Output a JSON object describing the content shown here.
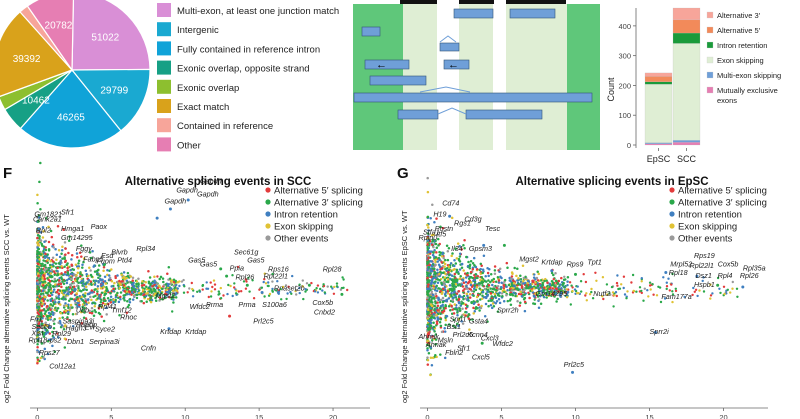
{
  "colors": {
    "multi_exon": "#d98fd6",
    "intergenic": "#1aa9d1",
    "contained_intron": "#10a3d8",
    "exonic_opposite": "#16a085",
    "exonic_overlap": "#8dbf2f",
    "exact_match": "#d9a21b",
    "contained_ref": "#f7a59a",
    "other": "#e67eb3",
    "alt5": "#e23b3b",
    "alt3": "#2aa84a",
    "intron_ret": "#3f7fc0",
    "exon_skip": "#e0c234",
    "other_events": "#9a9a9a",
    "track_dark": "#5fc77a",
    "track_light": "#dfeed4",
    "box_blue": "#6f9fd8"
  },
  "pie": {
    "chart_data": {
      "type": "pie",
      "slices": [
        {
          "label": "Multi-exon, at least one junction match",
          "value": 51022,
          "value_label": "51022",
          "color": "#d98fd6"
        },
        {
          "label": "Intergenic",
          "value": 29799,
          "value_label": "29799",
          "color": "#1aa9d1"
        },
        {
          "label": "Fully contained in reference intron",
          "value": 46265,
          "value_label": "46265",
          "color": "#10a3d8"
        },
        {
          "label": "Exonic overlap, opposite strand",
          "value": 10462,
          "value_label": "10462",
          "color": "#16a085"
        },
        {
          "label": "Exonic overlap",
          "value": 6000,
          "value_label": "",
          "color": "#8dbf2f"
        },
        {
          "label": "Exact match",
          "value": 39392,
          "value_label": "39392",
          "color": "#d9a21b"
        },
        {
          "label": "Contained in reference",
          "value": 4000,
          "value_label": "",
          "color": "#f7a59a"
        },
        {
          "label": "Other",
          "value": 20782,
          "value_label": "20782",
          "color": "#e67eb3"
        }
      ]
    },
    "legend": [
      {
        "label": "Multi-exon, at least one junction match",
        "color": "#d98fd6"
      },
      {
        "label": "Intergenic",
        "color": "#1aa9d1"
      },
      {
        "label": "Fully contained in reference intron",
        "color": "#10a3d8"
      },
      {
        "label": "Exonic overlap, opposite strand",
        "color": "#16a085"
      },
      {
        "label": "Exonic overlap",
        "color": "#8dbf2f"
      },
      {
        "label": "Exact match",
        "color": "#d9a21b"
      },
      {
        "label": "Contained in reference",
        "color": "#f7a59a"
      },
      {
        "label": "Other",
        "color": "#e67eb3"
      }
    ]
  },
  "stacked": {
    "chart_data": {
      "type": "bar",
      "stacked": true,
      "categories": [
        "EpSC",
        "SCC"
      ],
      "ylabel": "Count",
      "yticks": [
        0,
        100,
        200,
        300,
        400
      ],
      "ylim": [
        0,
        460
      ],
      "series": [
        {
          "name": "Mutually exclusive exons",
          "values": [
            4,
            9
          ],
          "color": "#e67eb3"
        },
        {
          "name": "Multi-exon skipping",
          "values": [
            4,
            7
          ],
          "color": "#6f9fd8"
        },
        {
          "name": "Exon skipping",
          "values": [
            196,
            325
          ],
          "color": "#dfeed4"
        },
        {
          "name": "Intron retention",
          "values": [
            8,
            35
          ],
          "color": "#1a9a3a"
        },
        {
          "name": "Alternative 5'",
          "values": [
            18,
            44
          ],
          "color": "#f28a5a"
        },
        {
          "name": "Alternative 3'",
          "values": [
            12,
            40
          ],
          "color": "#f7a59a"
        }
      ]
    },
    "legend": [
      {
        "label": "Alternative 3′",
        "color": "#f7a59a"
      },
      {
        "label": "Alternative 5′",
        "color": "#f28a5a"
      },
      {
        "label": "Intron retention",
        "color": "#1a9a3a"
      },
      {
        "label": "Exon skipping",
        "color": "#dfeed4"
      },
      {
        "label": "Multi-exon skipping",
        "color": "#6f9fd8"
      },
      {
        "label": "Mutually exclusive",
        "color": "#e67eb3"
      },
      {
        "label": "exons",
        "color": ""
      }
    ]
  },
  "panelF": {
    "letter": "F",
    "chart_data": {
      "type": "scatter",
      "title": "Alternative splicing events in SCC",
      "ylabel": "og2 Fold Change alternative splicing events SCC vs. WT",
      "xticks": [
        0,
        5,
        10,
        15,
        20
      ],
      "xlim": [
        -0.5,
        22.5
      ],
      "ylim": [
        -3.2,
        3.0
      ],
      "seed": 7,
      "legend": [
        {
          "label": "Alternative 5′ splicing",
          "color": "#e23b3b"
        },
        {
          "label": "Alternative 3′ splicing",
          "color": "#2aa84a"
        },
        {
          "label": "Intron retention",
          "color": "#3f7fc0"
        },
        {
          "label": "Exon skipping",
          "color": "#e0c234"
        },
        {
          "label": "Other events",
          "color": "#9a9a9a"
        }
      ],
      "highlight_points": [
        {
          "x": 10.2,
          "y": 2.45,
          "color": "#3f7fc0"
        },
        {
          "x": 9.0,
          "y": 2.2,
          "color": "#3f7fc0"
        },
        {
          "x": 8.1,
          "y": 1.95,
          "color": "#3f7fc0"
        },
        {
          "x": 12.4,
          "y": 0.55,
          "color": "#2aa84a"
        },
        {
          "x": 12.8,
          "y": 0.35,
          "color": "#2aa84a"
        },
        {
          "x": 14.2,
          "y": 0.1,
          "color": "#2aa84a"
        },
        {
          "x": 15.2,
          "y": -0.1,
          "color": "#3f7fc0"
        },
        {
          "x": 16.3,
          "y": -0.1,
          "color": "#3f7fc0"
        },
        {
          "x": 18.4,
          "y": 0.1,
          "color": "#2aa84a"
        },
        {
          "x": 20.6,
          "y": -0.15,
          "color": "#2aa84a"
        },
        {
          "x": 13.0,
          "y": -0.75,
          "color": "#e23b3b"
        },
        {
          "x": 8.9,
          "y": -1.1,
          "color": "#3f7fc0"
        }
      ],
      "genes": [
        {
          "label": "Gapdh",
          "x": 9.4,
          "y": 2.65
        },
        {
          "label": "Gapdh",
          "x": 10.8,
          "y": 2.55
        },
        {
          "label": "Gapdh",
          "x": 11.0,
          "y": 2.9
        },
        {
          "label": "Gapdh",
          "x": 8.6,
          "y": 2.35
        },
        {
          "label": "Sfr1",
          "x": 1.6,
          "y": 2.05
        },
        {
          "label": "Gm1821",
          "x": -0.2,
          "y": 2.0
        },
        {
          "label": "Cank2a1",
          "x": -0.3,
          "y": 1.85
        },
        {
          "label": "Hmga1",
          "x": 1.6,
          "y": 1.6
        },
        {
          "label": "Paox",
          "x": 3.6,
          "y": 1.65
        },
        {
          "label": "Rpl2",
          "x": -0.1,
          "y": 1.55
        },
        {
          "label": "Gm14295",
          "x": 1.6,
          "y": 1.35
        },
        {
          "label": "Rpl34",
          "x": 6.7,
          "y": 1.05
        },
        {
          "label": "Fggy",
          "x": 2.6,
          "y": 1.05
        },
        {
          "label": "Esd",
          "x": 4.3,
          "y": 0.85
        },
        {
          "label": "Blvrb",
          "x": 5.0,
          "y": 0.95
        },
        {
          "label": "Fabp5",
          "x": 3.1,
          "y": 0.75
        },
        {
          "label": "Fuom",
          "x": 4.0,
          "y": 0.7
        },
        {
          "label": "Ptd4",
          "x": 5.4,
          "y": 0.72
        },
        {
          "label": "Sec61g",
          "x": 13.3,
          "y": 0.95
        },
        {
          "label": "Gas5",
          "x": 10.2,
          "y": 0.72
        },
        {
          "label": "Gas5",
          "x": 11.0,
          "y": 0.62
        },
        {
          "label": "Gas5",
          "x": 14.2,
          "y": 0.72
        },
        {
          "label": "Ppia",
          "x": 13.0,
          "y": 0.5
        },
        {
          "label": "Rps16",
          "x": 15.6,
          "y": 0.48
        },
        {
          "label": "Rpl28",
          "x": 19.3,
          "y": 0.48
        },
        {
          "label": "Rpl26",
          "x": 13.4,
          "y": 0.26
        },
        {
          "label": "Rpl22l1",
          "x": 15.3,
          "y": 0.28
        },
        {
          "label": "Mgst2",
          "x": 8.0,
          "y": -0.25
        },
        {
          "label": "Wfdc2",
          "x": 10.3,
          "y": -0.55
        },
        {
          "label": "Rnaset2b",
          "x": 16.0,
          "y": -0.05
        },
        {
          "label": "Cox5b",
          "x": 18.6,
          "y": -0.45
        },
        {
          "label": "S100a6",
          "x": 15.2,
          "y": -0.5
        },
        {
          "label": "Cnbd2",
          "x": 18.7,
          "y": -0.7
        },
        {
          "label": "Prma",
          "x": 11.4,
          "y": -0.5
        },
        {
          "label": "Prma",
          "x": 13.6,
          "y": -0.5
        },
        {
          "label": "Prl2c5",
          "x": 14.6,
          "y": -0.95
        },
        {
          "label": "Rpl41",
          "x": 4.1,
          "y": -0.55
        },
        {
          "label": "Tmf12",
          "x": 5.0,
          "y": -0.65
        },
        {
          "label": "Rhoc",
          "x": 5.6,
          "y": -0.85
        },
        {
          "label": "Ubb",
          "x": 2.6,
          "y": -0.65
        },
        {
          "label": "Krtdap",
          "x": 8.3,
          "y": -1.25
        },
        {
          "label": "Krtdap",
          "x": 10.0,
          "y": -1.25
        },
        {
          "label": "Cnfn",
          "x": 7.0,
          "y": -1.7
        },
        {
          "label": "Fn1",
          "x": -0.5,
          "y": -0.9
        },
        {
          "label": "Sec6b",
          "x": -0.4,
          "y": -1.1
        },
        {
          "label": "Xist",
          "x": -0.4,
          "y": -1.28
        },
        {
          "label": "Rpl18-ps2",
          "x": -0.6,
          "y": -1.48
        },
        {
          "label": "Saspina3i",
          "x": 1.7,
          "y": -0.95
        },
        {
          "label": "Ranbp",
          "x": 2.6,
          "y": -1.05
        },
        {
          "label": "Hagn3",
          "x": 1.9,
          "y": -1.15
        },
        {
          "label": "Evl",
          "x": 3.2,
          "y": -1.12
        },
        {
          "label": "Syce2",
          "x": 3.9,
          "y": -1.18
        },
        {
          "label": "Rpl29",
          "x": 1.0,
          "y": -1.3
        },
        {
          "label": "Dbn1",
          "x": 2.0,
          "y": -1.52
        },
        {
          "label": "Serpina3i",
          "x": 3.5,
          "y": -1.52
        },
        {
          "label": "Rps27",
          "x": 0.1,
          "y": -1.82
        },
        {
          "label": "Col12a1",
          "x": 0.8,
          "y": -2.2
        }
      ]
    }
  },
  "panelG": {
    "letter": "G",
    "chart_data": {
      "type": "scatter",
      "title": "Alternative splicing events in EpSC",
      "ylabel": "og2 Fold Change alternative splicing events EpSC vs. WT",
      "xticks": [
        0,
        5,
        10,
        15,
        20
      ],
      "xlim": [
        -0.5,
        23
      ],
      "ylim": [
        -3.2,
        3.0
      ],
      "seed": 13,
      "legend": [
        {
          "label": "Alternative 5′ splicing",
          "color": "#e23b3b"
        },
        {
          "label": "Alternative 3′ splicing",
          "color": "#2aa84a"
        },
        {
          "label": "Intron retention",
          "color": "#3f7fc0"
        },
        {
          "label": "Exon skipping",
          "color": "#e0c234"
        },
        {
          "label": "Other events",
          "color": "#9a9a9a"
        }
      ],
      "highlight_points": [
        {
          "x": 1.5,
          "y": 2.0,
          "color": "#3f7fc0"
        },
        {
          "x": 3.8,
          "y": 1.2,
          "color": "#3f7fc0"
        },
        {
          "x": 5.2,
          "y": 1.2,
          "color": "#2aa84a"
        },
        {
          "x": 8.4,
          "y": 0.5,
          "color": "#3f7fc0"
        },
        {
          "x": 10.0,
          "y": 0.4,
          "color": "#2aa84a"
        },
        {
          "x": 16.1,
          "y": 0.45,
          "color": "#3f7fc0"
        },
        {
          "x": 18.2,
          "y": 0.35,
          "color": "#3f7fc0"
        },
        {
          "x": 19.6,
          "y": 0.1,
          "color": "#2aa84a"
        },
        {
          "x": 21.3,
          "y": 0.05,
          "color": "#3f7fc0"
        },
        {
          "x": 15.4,
          "y": -1.2,
          "color": "#3f7fc0"
        },
        {
          "x": 9.8,
          "y": -2.3,
          "color": "#3f7fc0"
        },
        {
          "x": 3.7,
          "y": -1.5,
          "color": "#2aa84a"
        }
      ],
      "genes": [
        {
          "label": "Cd74",
          "x": 1.0,
          "y": 2.3
        },
        {
          "label": "H19",
          "x": 0.4,
          "y": 2.0
        },
        {
          "label": "Cd3g",
          "x": 2.5,
          "y": 1.85
        },
        {
          "label": "Rgs1",
          "x": 1.8,
          "y": 1.75
        },
        {
          "label": "Postn",
          "x": 0.5,
          "y": 1.6
        },
        {
          "label": "Tesc",
          "x": 3.9,
          "y": 1.6
        },
        {
          "label": "Stfa1",
          "x": -0.3,
          "y": 1.5
        },
        {
          "label": "Itf5",
          "x": 0.6,
          "y": 1.45
        },
        {
          "label": "Rpip0",
          "x": -0.6,
          "y": 1.35
        },
        {
          "label": "Il34",
          "x": 1.6,
          "y": 1.05
        },
        {
          "label": "Gpsm3",
          "x": 2.8,
          "y": 1.05
        },
        {
          "label": "Mgst2",
          "x": 6.2,
          "y": 0.75
        },
        {
          "label": "Krtdap",
          "x": 7.7,
          "y": 0.67
        },
        {
          "label": "Rps9",
          "x": 9.4,
          "y": 0.62
        },
        {
          "label": "Tpt1",
          "x": 10.8,
          "y": 0.67
        },
        {
          "label": "Rps19",
          "x": 18.0,
          "y": 0.85
        },
        {
          "label": "Cox5b",
          "x": 19.6,
          "y": 0.62
        },
        {
          "label": "Mrpl52",
          "x": 16.4,
          "y": 0.62
        },
        {
          "label": "Rpl22l1",
          "x": 17.7,
          "y": 0.58
        },
        {
          "label": "Rpl35a",
          "x": 21.3,
          "y": 0.5
        },
        {
          "label": "Rpl18",
          "x": 16.3,
          "y": 0.38
        },
        {
          "label": "Dsz1",
          "x": 18.1,
          "y": 0.3
        },
        {
          "label": "Rpl4",
          "x": 19.6,
          "y": 0.3
        },
        {
          "label": "Rpl26",
          "x": 21.1,
          "y": 0.3
        },
        {
          "label": "Hspb1",
          "x": 18.0,
          "y": 0.05
        },
        {
          "label": "Nutf2",
          "x": 11.2,
          "y": -0.2
        },
        {
          "label": "Fam177a",
          "x": 15.8,
          "y": -0.28
        },
        {
          "label": "Gm14295",
          "x": 7.3,
          "y": -0.2
        },
        {
          "label": "Sprr2h",
          "x": 4.7,
          "y": -0.65
        },
        {
          "label": "Spp1",
          "x": 1.5,
          "y": -0.9
        },
        {
          "label": "Gsta4",
          "x": 2.8,
          "y": -0.95
        },
        {
          "label": "Bst1",
          "x": 1.3,
          "y": -1.1
        },
        {
          "label": "Prl2c5",
          "x": 1.7,
          "y": -1.32
        },
        {
          "label": "Kcnn4",
          "x": 2.7,
          "y": -1.32
        },
        {
          "label": "Cxcl3",
          "x": 3.6,
          "y": -1.42
        },
        {
          "label": "Ahnak",
          "x": -0.6,
          "y": -1.38
        },
        {
          "label": "Msln",
          "x": 0.7,
          "y": -1.48
        },
        {
          "label": "Wfdc2",
          "x": 4.4,
          "y": -1.58
        },
        {
          "label": "Ahnak",
          "x": -0.1,
          "y": -1.6
        },
        {
          "label": "Sfr1",
          "x": 2.0,
          "y": -1.7
        },
        {
          "label": "Fbln2",
          "x": 1.2,
          "y": -1.82
        },
        {
          "label": "Cxcl5",
          "x": 3.0,
          "y": -1.95
        },
        {
          "label": "Sprr2i",
          "x": 15.0,
          "y": -1.25
        },
        {
          "label": "Prl2c5",
          "x": 9.2,
          "y": -2.15
        }
      ]
    }
  },
  "diagram": {
    "arrows": [
      "←",
      "←"
    ]
  }
}
